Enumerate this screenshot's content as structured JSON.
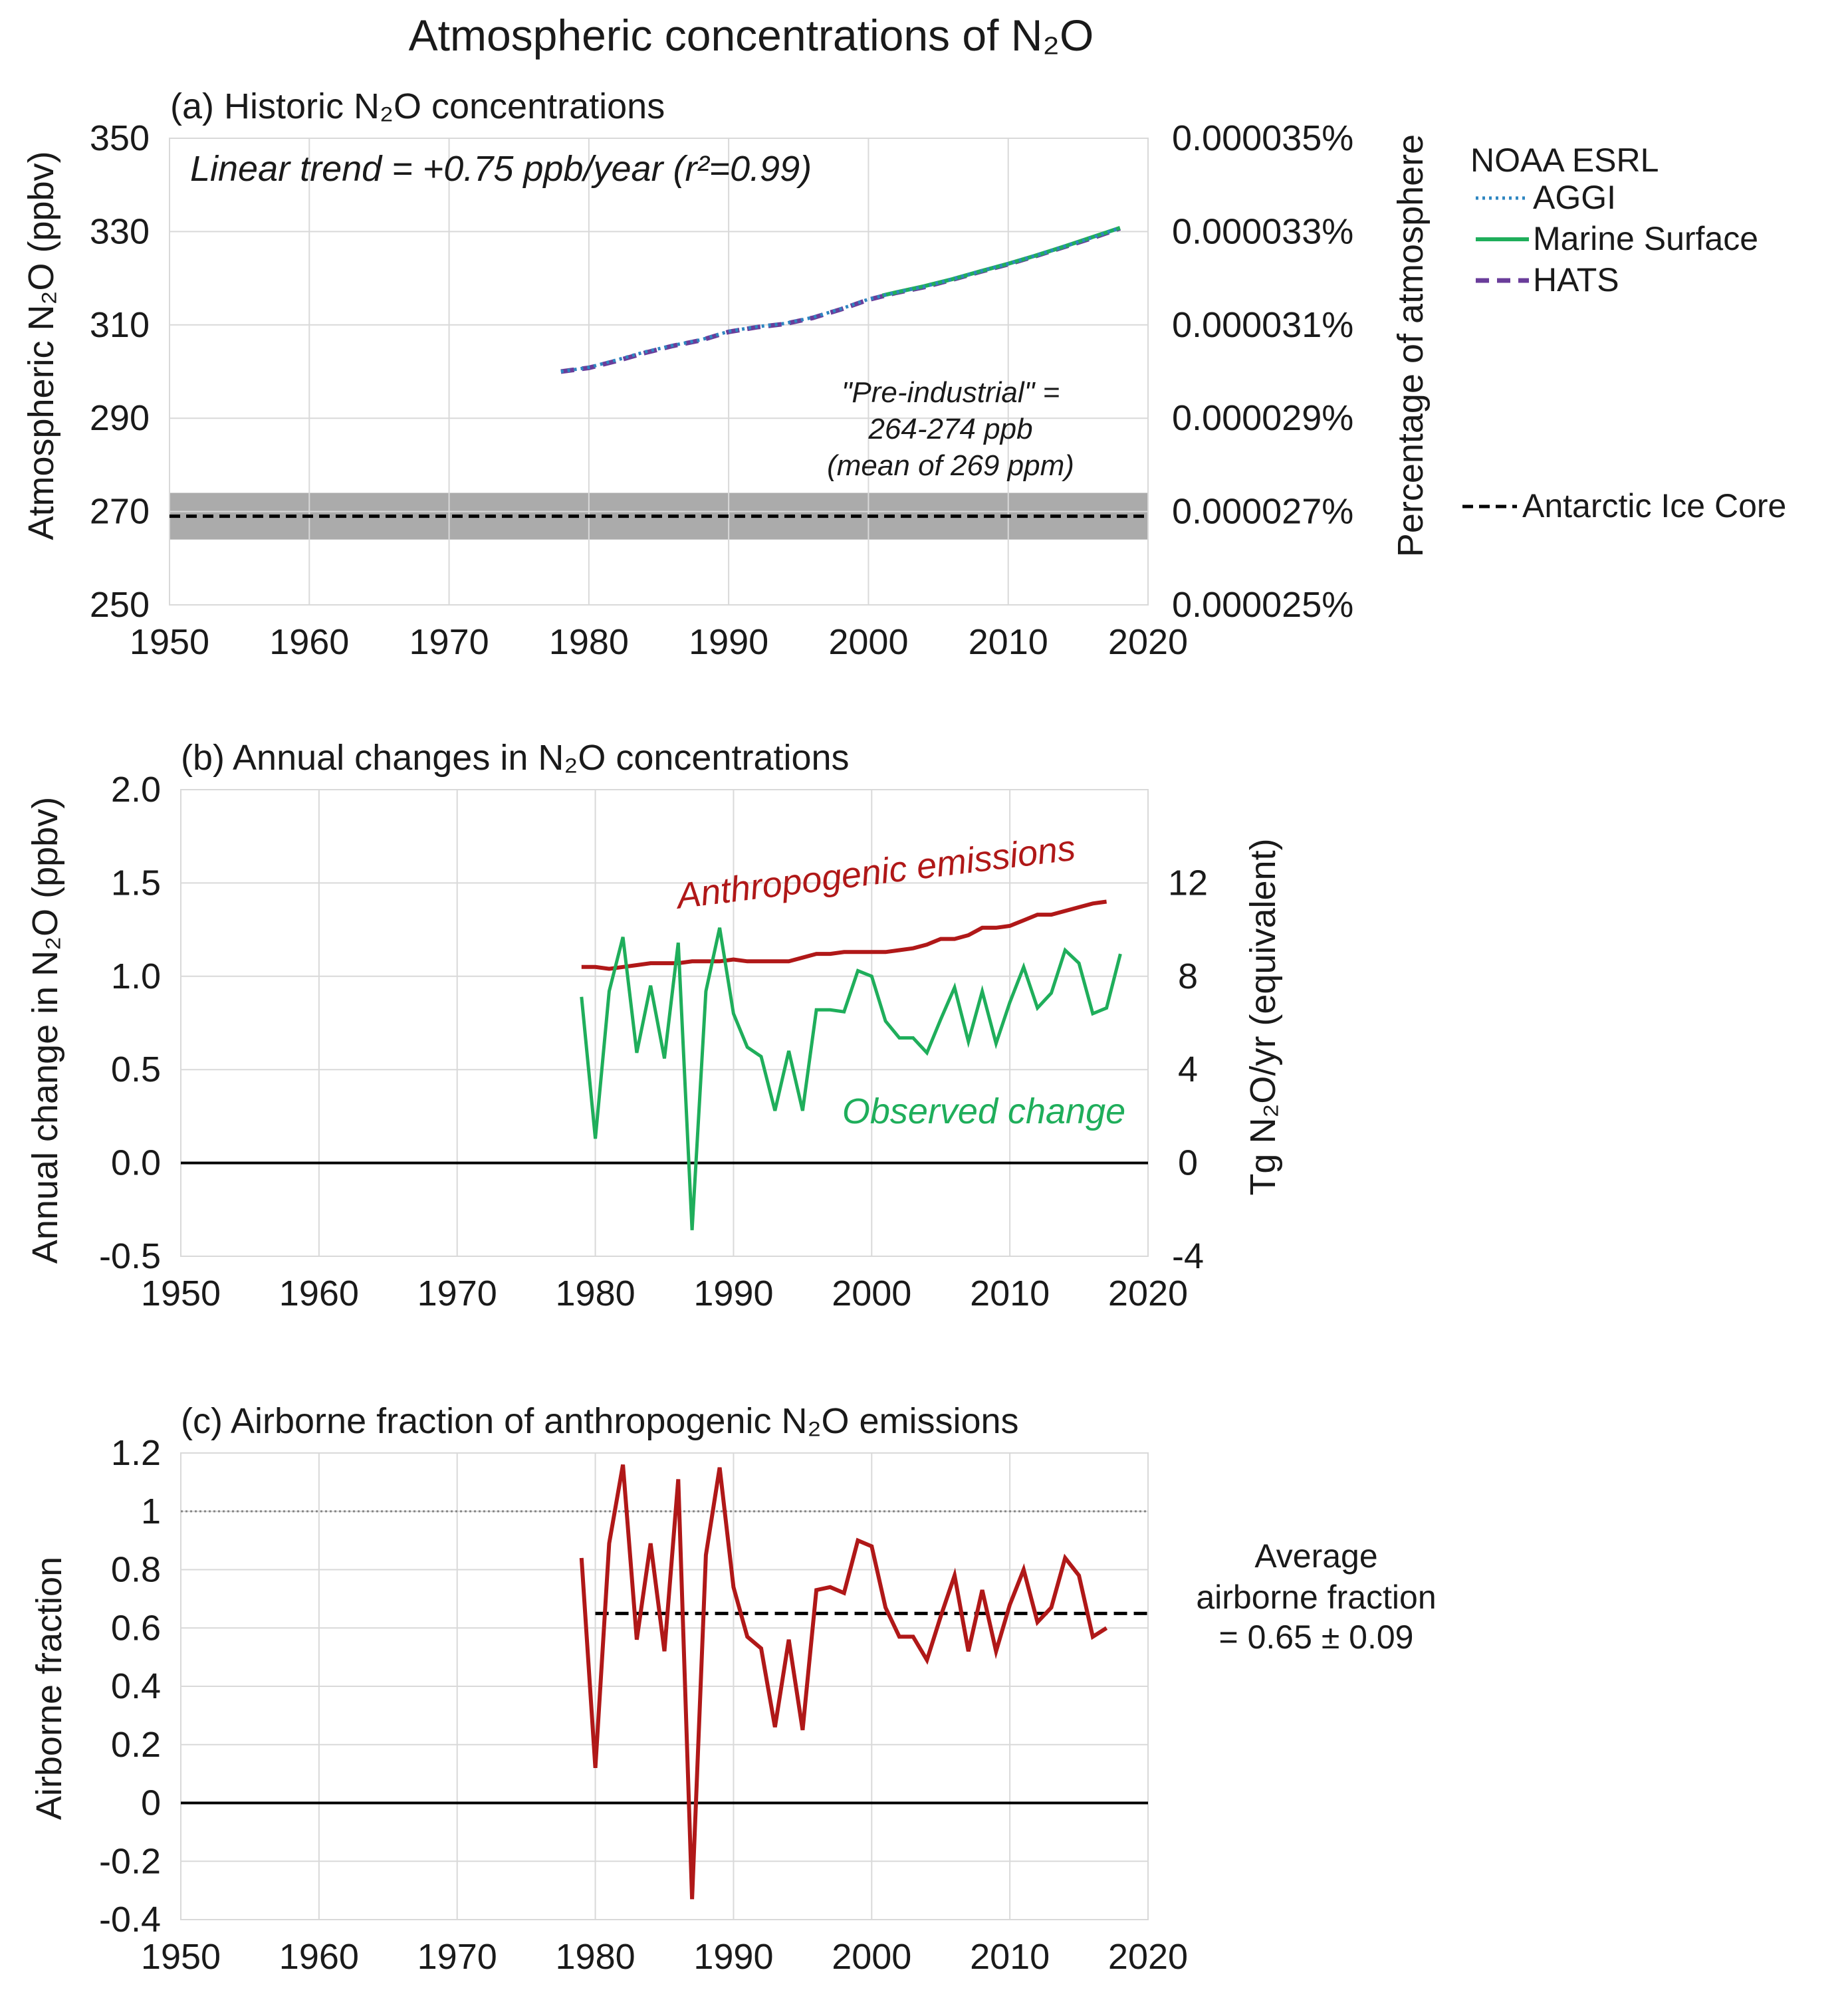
{
  "figure_title": "Atmospheric concentrations of N₂O",
  "colors": {
    "aggi": "#2e86c1",
    "marine": "#1fae5b",
    "hats": "#6a3d9a",
    "anthro": "#b01818",
    "observed": "#1fae5b",
    "band": "#ababab",
    "grid": "#d9d9d9",
    "text": "#1a1a1a"
  },
  "chart_data": [
    {
      "id": "a",
      "type": "line",
      "title": "(a) Historic N₂O concentrations",
      "ylabel": "Atmospheric N₂O (ppbv)",
      "ylabel_right": "Percentage of atmosphere",
      "xlim": [
        1950,
        2020
      ],
      "ylim": [
        250,
        350
      ],
      "xticks": [
        "1950",
        "1960",
        "1970",
        "1980",
        "1990",
        "2000",
        "2010",
        "2020"
      ],
      "yticks": [
        "250",
        "270",
        "290",
        "310",
        "330",
        "350"
      ],
      "yticks_right": [
        "0.000025%",
        "0.000027%",
        "0.000029%",
        "0.000031%",
        "0.000033%",
        "0.000035%"
      ],
      "grid": true,
      "annotation_trend": "Linear trend = +0.75 ppb/year (r²=0.99)",
      "annotation_preindustrial": [
        "\"Pre-industrial\" =",
        "264-274 ppb",
        "(mean of 269 ppm)"
      ],
      "legend_header": "NOAA ESRL",
      "legend_position": "right",
      "series": [
        {
          "name": "AGGI",
          "style": "dotted",
          "x": [
            1978,
            1980,
            1982,
            1984,
            1986,
            1988,
            1990,
            1992,
            1994,
            1996,
            1998,
            2000,
            2002,
            2004,
            2006,
            2008,
            2010,
            2012,
            2014,
            2016,
            2018
          ],
          "y": [
            300.0,
            300.9,
            302.5,
            304.2,
            305.6,
            306.8,
            308.6,
            309.6,
            310.3,
            311.6,
            313.4,
            315.5,
            317.0,
            318.2,
            319.8,
            321.5,
            323.1,
            324.9,
            326.8,
            328.7,
            330.8
          ]
        },
        {
          "name": "Marine Surface",
          "style": "solid",
          "x": [
            2001,
            2002,
            2004,
            2006,
            2008,
            2010,
            2012,
            2014,
            2016,
            2018
          ],
          "y": [
            316.3,
            317.0,
            318.3,
            319.8,
            321.5,
            323.1,
            324.9,
            326.8,
            328.8,
            330.8
          ]
        },
        {
          "name": "HATS",
          "style": "dashed",
          "x": [
            1978,
            1980,
            1982,
            1984,
            1986,
            1988,
            1990,
            1992,
            1994,
            1996,
            1998,
            2000,
            2002,
            2004,
            2006,
            2008,
            2010,
            2012,
            2014,
            2016,
            2018
          ],
          "y": [
            300.0,
            300.8,
            302.3,
            304.0,
            305.5,
            306.7,
            308.5,
            309.5,
            310.2,
            311.5,
            313.3,
            315.4,
            316.9,
            318.1,
            319.7,
            321.4,
            323.0,
            324.8,
            326.7,
            328.6,
            330.7
          ]
        },
        {
          "name": "Antarctic Ice Core",
          "style": "dashed-black",
          "x": [
            1950,
            2020
          ],
          "y": [
            269,
            269
          ],
          "band": [
            264,
            274
          ]
        }
      ]
    },
    {
      "id": "b",
      "type": "line",
      "title": "(b) Annual changes in N₂O concentrations",
      "ylabel": "Annual change in N₂O (ppbv)",
      "ylabel_right": "Tg N₂O/yr (equivalent)",
      "xlim": [
        1950,
        2020
      ],
      "ylim": [
        -0.5,
        2.0
      ],
      "xticks": [
        "1950",
        "1960",
        "1970",
        "1980",
        "1990",
        "2000",
        "2010",
        "2020"
      ],
      "yticks": [
        "-0.5",
        "0.0",
        "0.5",
        "1.0",
        "1.5",
        "2.0"
      ],
      "yticks_right": [
        "-4",
        "0",
        "4",
        "8",
        "12"
      ],
      "grid": true,
      "series": [
        {
          "name": "Anthropogenic emissions",
          "label": "Anthropogenic emissions",
          "x": [
            1979,
            1980,
            1981,
            1982,
            1983,
            1984,
            1985,
            1986,
            1987,
            1988,
            1989,
            1990,
            1991,
            1992,
            1993,
            1994,
            1995,
            1996,
            1997,
            1998,
            1999,
            2000,
            2001,
            2002,
            2003,
            2004,
            2005,
            2006,
            2007,
            2008,
            2009,
            2010,
            2011,
            2012,
            2013,
            2014,
            2015,
            2016,
            2017
          ],
          "y": [
            1.05,
            1.05,
            1.04,
            1.05,
            1.06,
            1.07,
            1.07,
            1.07,
            1.08,
            1.08,
            1.08,
            1.09,
            1.08,
            1.08,
            1.08,
            1.08,
            1.1,
            1.12,
            1.12,
            1.13,
            1.13,
            1.13,
            1.13,
            1.14,
            1.15,
            1.17,
            1.2,
            1.2,
            1.22,
            1.26,
            1.26,
            1.27,
            1.3,
            1.33,
            1.33,
            1.35,
            1.37,
            1.39,
            1.4
          ]
        },
        {
          "name": "Observed change",
          "label": "Observed change",
          "x": [
            1979,
            1980,
            1981,
            1982,
            1983,
            1984,
            1985,
            1986,
            1987,
            1988,
            1989,
            1990,
            1991,
            1992,
            1993,
            1994,
            1995,
            1996,
            1997,
            1998,
            1999,
            2000,
            2001,
            2002,
            2003,
            2004,
            2005,
            2006,
            2007,
            2008,
            2009,
            2010,
            2011,
            2012,
            2013,
            2014,
            2015,
            2016,
            2017,
            2018
          ],
          "y": [
            0.89,
            0.13,
            0.92,
            1.21,
            0.59,
            0.95,
            0.56,
            1.18,
            -0.36,
            0.92,
            1.26,
            0.8,
            0.62,
            0.57,
            0.28,
            0.6,
            0.28,
            0.82,
            0.82,
            0.81,
            1.03,
            1.0,
            0.76,
            0.67,
            0.67,
            0.59,
            0.77,
            0.94,
            0.65,
            0.92,
            0.64,
            0.86,
            1.05,
            0.83,
            0.91,
            1.14,
            1.07,
            0.8,
            0.83,
            1.12
          ]
        }
      ]
    },
    {
      "id": "c",
      "type": "line",
      "title": "(c) Airborne fraction of anthropogenic N₂O emissions",
      "ylabel": "Airborne fraction",
      "xlim": [
        1950,
        2020
      ],
      "ylim": [
        -0.4,
        1.2
      ],
      "xticks": [
        "1950",
        "1960",
        "1970",
        "1980",
        "1990",
        "2000",
        "2010",
        "2020"
      ],
      "yticks": [
        "-0.4",
        "-0.2",
        "0",
        "0.2",
        "0.4",
        "0.6",
        "0.8",
        "1",
        "1.2"
      ],
      "grid": true,
      "reference_line": 1,
      "average": 0.65,
      "average_label": [
        "Average",
        "airborne fraction",
        "= 0.65 ± 0.09"
      ],
      "series": [
        {
          "name": "Airborne fraction",
          "x": [
            1979,
            1980,
            1981,
            1982,
            1983,
            1984,
            1985,
            1986,
            1987,
            1988,
            1989,
            1990,
            1991,
            1992,
            1993,
            1994,
            1995,
            1996,
            1997,
            1998,
            1999,
            2000,
            2001,
            2002,
            2003,
            2004,
            2005,
            2006,
            2007,
            2008,
            2009,
            2010,
            2011,
            2012,
            2013,
            2014,
            2015,
            2016,
            2017
          ],
          "y": [
            0.84,
            0.12,
            0.89,
            1.16,
            0.56,
            0.89,
            0.52,
            1.11,
            -0.33,
            0.85,
            1.15,
            0.74,
            0.57,
            0.53,
            0.26,
            0.56,
            0.25,
            0.73,
            0.74,
            0.72,
            0.9,
            0.88,
            0.67,
            0.57,
            0.57,
            0.49,
            0.64,
            0.78,
            0.52,
            0.73,
            0.52,
            0.68,
            0.8,
            0.62,
            0.67,
            0.84,
            0.78,
            0.57,
            0.6
          ]
        }
      ]
    }
  ]
}
